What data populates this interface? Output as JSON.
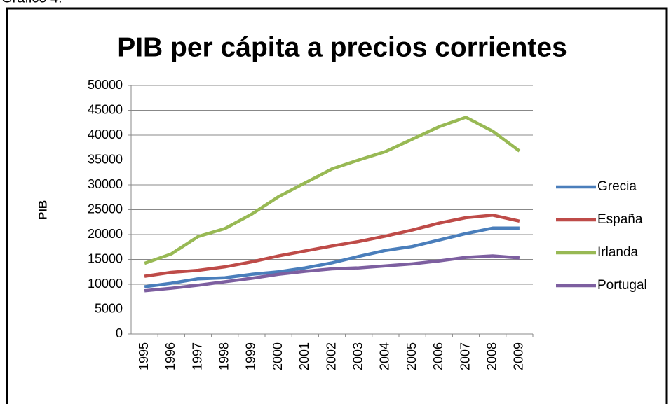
{
  "caption": "Gráfico 4.",
  "chart_data": {
    "type": "line",
    "title": "PIB per cápita a precios corrientes",
    "y_label": "PIB",
    "categories": [
      "1995",
      "1996",
      "1997",
      "1998",
      "1999",
      "2000",
      "2001",
      "2002",
      "2003",
      "2004",
      "2005",
      "2006",
      "2007",
      "2008",
      "2009"
    ],
    "series": [
      {
        "name": "Grecia",
        "color": "#4a7ebb",
        "values": [
          9500,
          10200,
          11100,
          11300,
          12000,
          12500,
          13300,
          14300,
          15600,
          16800,
          17600,
          18900,
          20200,
          21300,
          21300
        ]
      },
      {
        "name": "España",
        "color": "#be4b48",
        "values": [
          11600,
          12400,
          12800,
          13500,
          14500,
          15700,
          16700,
          17700,
          18600,
          19700,
          20900,
          22300,
          23400,
          23900,
          22700
        ]
      },
      {
        "name": "Irlanda",
        "color": "#98b954",
        "values": [
          14200,
          16100,
          19600,
          21200,
          24100,
          27600,
          30400,
          33200,
          35000,
          36700,
          39200,
          41700,
          43600,
          40800,
          36800
        ]
      },
      {
        "name": "Portugal",
        "color": "#7d5fa0",
        "values": [
          8700,
          9200,
          9800,
          10500,
          11200,
          12000,
          12600,
          13100,
          13300,
          13700,
          14100,
          14700,
          15400,
          15700,
          15300
        ]
      }
    ],
    "ylim": [
      0,
      50000
    ],
    "yticks": [
      0,
      5000,
      10000,
      15000,
      20000,
      25000,
      30000,
      35000,
      40000,
      45000,
      50000
    ],
    "grid": true,
    "legend": "right"
  }
}
